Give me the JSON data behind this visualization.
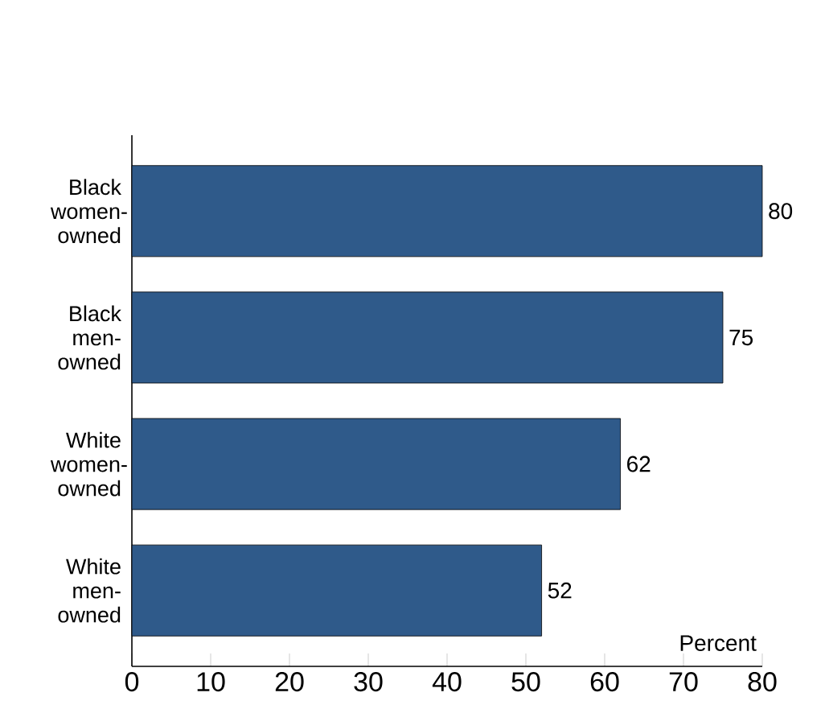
{
  "chart_data": {
    "type": "bar",
    "orientation": "horizontal",
    "categories": [
      "Black women-owned",
      "Black men-owned",
      "White women-owned",
      "White men-owned"
    ],
    "values": [
      80,
      75,
      62,
      52
    ],
    "color": "#2f5a8a",
    "data_labels": true,
    "xlabel": "Percent",
    "xlim": [
      0,
      80
    ],
    "xticks": [
      0,
      10,
      20,
      30,
      40,
      50,
      60,
      70,
      80
    ]
  }
}
